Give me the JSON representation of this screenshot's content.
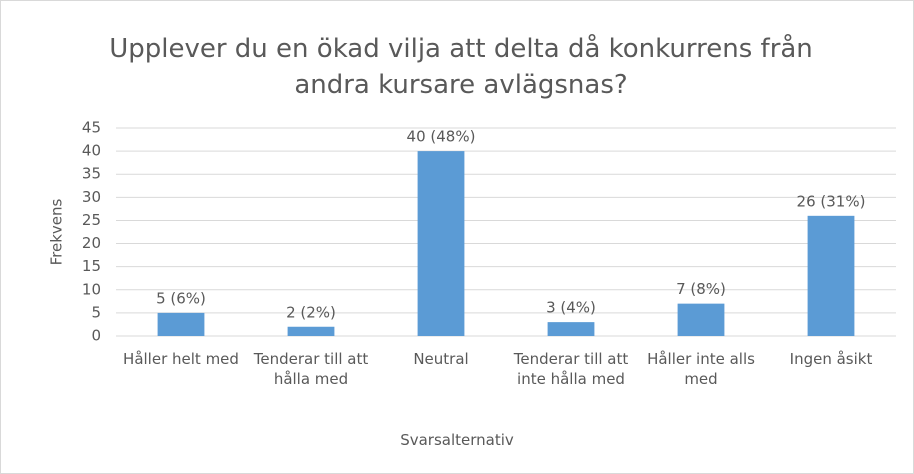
{
  "chart_data": {
    "type": "bar",
    "title": "Upplever du en ökad vilja att delta då konkurrens från andra kursare avlägsnas?",
    "x_label": "Svarsalternativ",
    "y_label": "Frekvens",
    "categories": [
      "Håller helt med",
      "Tenderar till att hålla med",
      "Neutral",
      "Tenderar till att inte hålla med",
      "Håller inte alls med",
      "Ingen åsikt"
    ],
    "values": [
      5,
      2,
      40,
      3,
      7,
      26
    ],
    "value_labels": [
      "5 (6%)",
      "2 (2%)",
      "40 (48%)",
      "3 (4%)",
      "7 (8%)",
      "26 (31%)"
    ],
    "color": "#5b9bd5",
    "ylim": [
      0,
      45
    ],
    "yticks": [
      0,
      5,
      10,
      15,
      20,
      25,
      30,
      35,
      40,
      45
    ],
    "grid": true
  }
}
